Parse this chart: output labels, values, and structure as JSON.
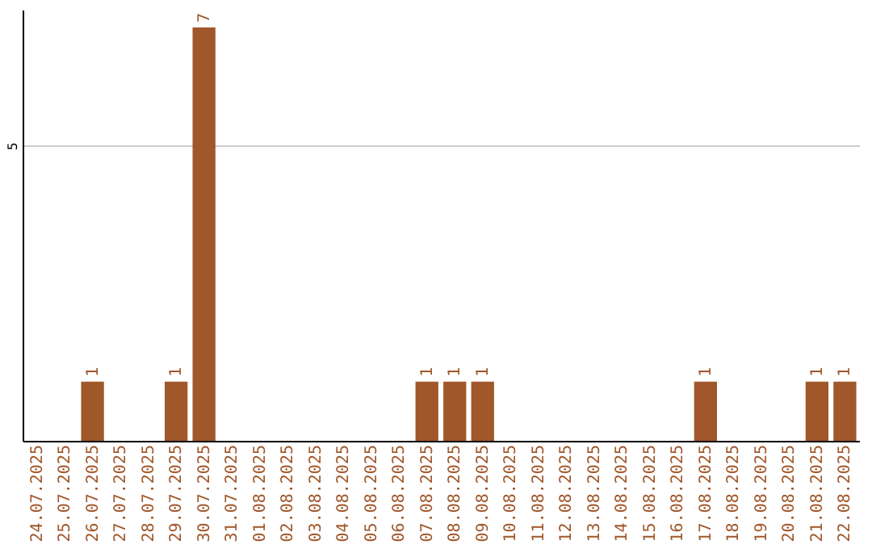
{
  "chart_data": {
    "type": "bar",
    "categories": [
      "24.07.2025",
      "25.07.2025",
      "26.07.2025",
      "27.07.2025",
      "28.07.2025",
      "29.07.2025",
      "30.07.2025",
      "31.07.2025",
      "01.08.2025",
      "02.08.2025",
      "03.08.2025",
      "04.08.2025",
      "05.08.2025",
      "06.08.2025",
      "07.08.2025",
      "08.08.2025",
      "09.08.2025",
      "10.08.2025",
      "11.08.2025",
      "12.08.2025",
      "13.08.2025",
      "14.08.2025",
      "15.08.2025",
      "16.08.2025",
      "17.08.2025",
      "18.08.2025",
      "19.08.2025",
      "20.08.2025",
      "21.08.2025",
      "22.08.2025"
    ],
    "values": [
      0,
      0,
      1,
      0,
      0,
      1,
      7,
      0,
      0,
      0,
      0,
      0,
      0,
      0,
      1,
      1,
      1,
      0,
      0,
      0,
      0,
      0,
      0,
      0,
      1,
      0,
      0,
      0,
      1,
      1
    ],
    "value_labels": [
      null,
      null,
      "1",
      null,
      null,
      "1",
      "7",
      null,
      null,
      null,
      null,
      null,
      null,
      null,
      "1",
      "1",
      "1",
      null,
      null,
      null,
      null,
      null,
      null,
      null,
      "1",
      null,
      null,
      null,
      "1",
      "1"
    ],
    "color": "#a0572a",
    "ylim": [
      0,
      7.3
    ],
    "yticks": [
      5
    ],
    "grid": "y"
  }
}
